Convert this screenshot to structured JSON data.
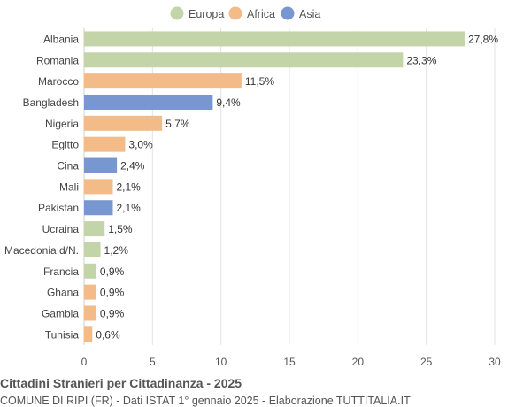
{
  "chart_data": {
    "type": "bar",
    "orientation": "horizontal",
    "title": "Cittadini Stranieri per Cittadinanza - 2025",
    "subtitle": "COMUNE DI RIPI (FR) - Dati ISTAT 1° gennaio 2025 - Elaborazione TUTTITALIA.IT",
    "legend": [
      {
        "name": "Europa",
        "color": "#c3d5a8"
      },
      {
        "name": "Africa",
        "color": "#f2bb88"
      },
      {
        "name": "Asia",
        "color": "#7896cf"
      }
    ],
    "legend_position": "top-center",
    "categories": [
      "Albania",
      "Romania",
      "Marocco",
      "Bangladesh",
      "Nigeria",
      "Egitto",
      "Cina",
      "Mali",
      "Pakistan",
      "Ucraina",
      "Macedonia d/N.",
      "Francia",
      "Ghana",
      "Gambia",
      "Tunisia"
    ],
    "values": [
      27.8,
      23.3,
      11.5,
      9.4,
      5.7,
      3.0,
      2.4,
      2.1,
      2.1,
      1.5,
      1.2,
      0.9,
      0.9,
      0.9,
      0.6
    ],
    "value_labels": [
      "27,8%",
      "23,3%",
      "11,5%",
      "9,4%",
      "5,7%",
      "3,0%",
      "2,4%",
      "2,1%",
      "2,1%",
      "1,5%",
      "1,2%",
      "0,9%",
      "0,9%",
      "0,9%",
      "0,6%"
    ],
    "groups": [
      "Europa",
      "Europa",
      "Africa",
      "Asia",
      "Africa",
      "Africa",
      "Asia",
      "Africa",
      "Asia",
      "Europa",
      "Europa",
      "Europa",
      "Africa",
      "Africa",
      "Africa"
    ],
    "xlim": [
      0,
      30
    ],
    "xticks": [
      0,
      5,
      10,
      15,
      20,
      25,
      30
    ],
    "grid": true
  }
}
